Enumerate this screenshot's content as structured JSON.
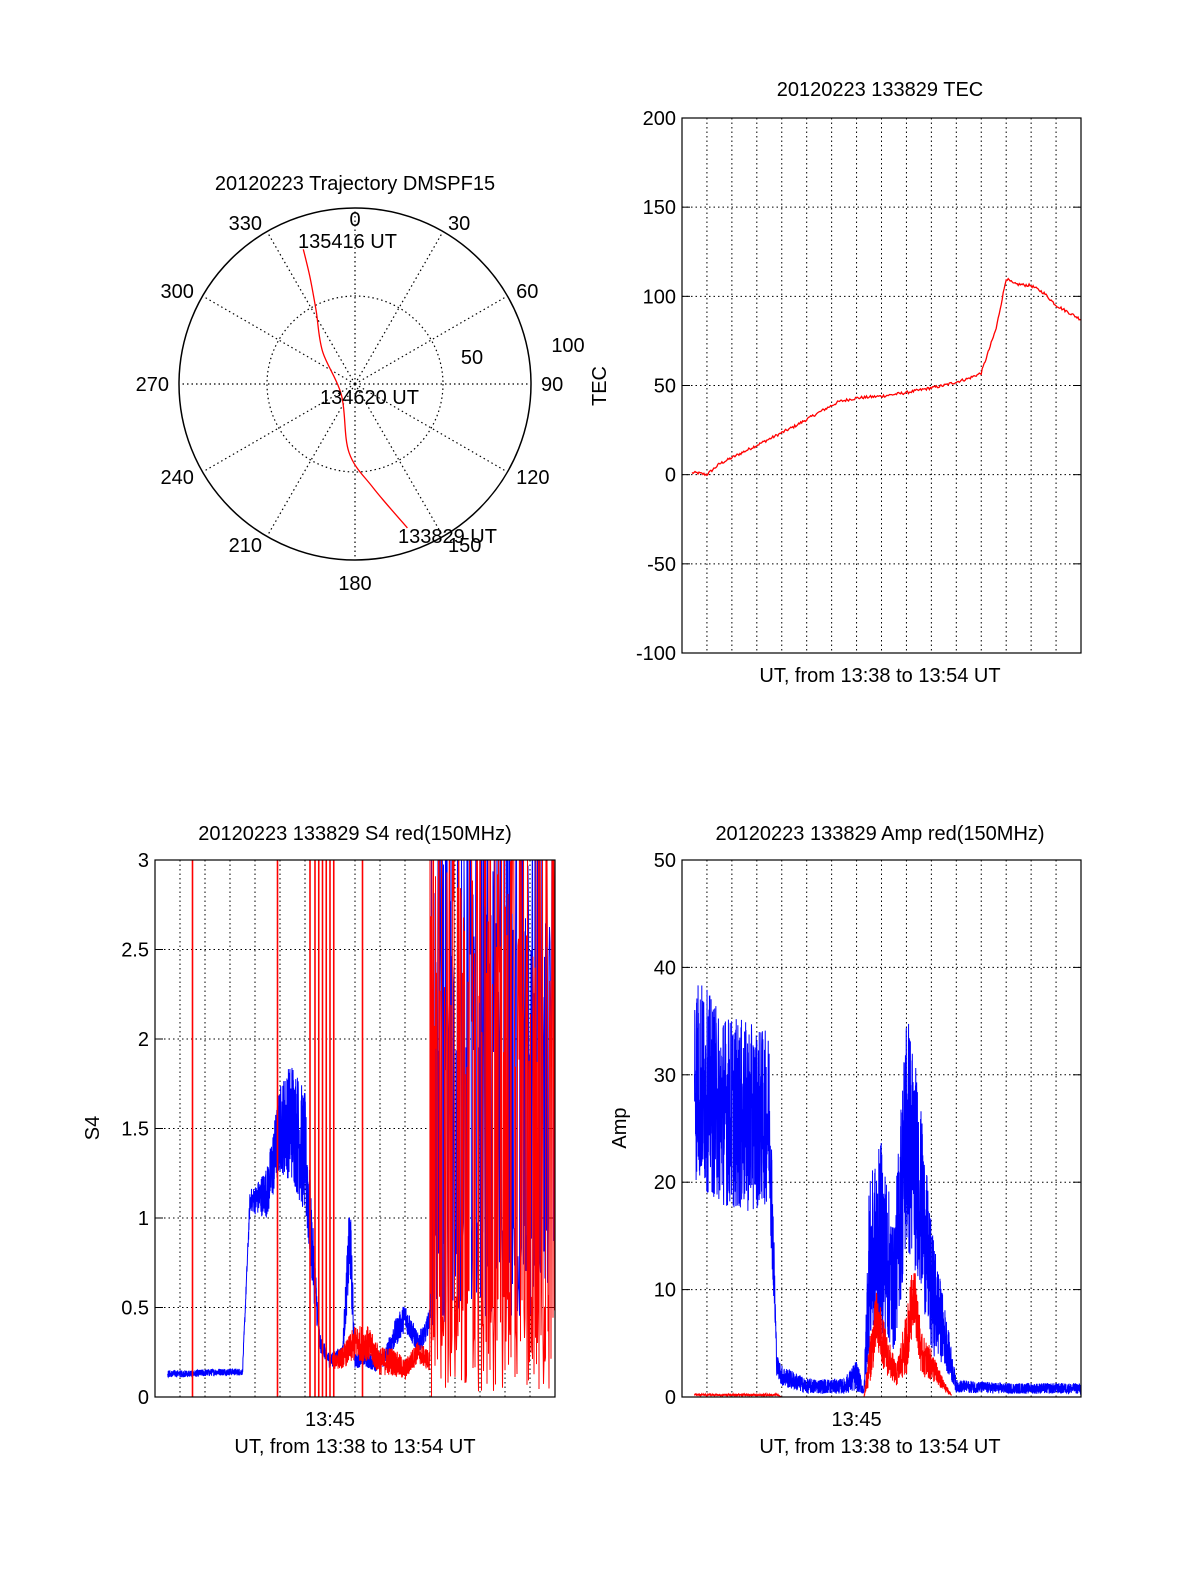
{
  "colors": {
    "red": "#ff0000",
    "blue": "#0000ff",
    "axis": "#000000",
    "grid": "#000000"
  },
  "chart_data": [
    {
      "type": "polar-trajectory",
      "title": "20120223 Trajectory DMSPF15",
      "azimuth_labels": [
        {
          "az": 0,
          "text": "0"
        },
        {
          "az": 30,
          "text": "30"
        },
        {
          "az": 60,
          "text": "60"
        },
        {
          "az": 90,
          "text": "90"
        },
        {
          "az": 120,
          "text": "120"
        },
        {
          "az": 150,
          "text": "150"
        },
        {
          "az": 180,
          "text": "180"
        },
        {
          "az": 210,
          "text": "210"
        },
        {
          "az": 240,
          "text": "240"
        },
        {
          "az": 270,
          "text": "270"
        },
        {
          "az": 300,
          "text": "300"
        },
        {
          "az": 330,
          "text": "330"
        }
      ],
      "radial_rings": [
        50,
        100
      ],
      "radial_labels": [
        "50",
        "100"
      ],
      "radial_max": 100,
      "grid": true,
      "series": {
        "color": "red",
        "points": [
          {
            "az": 339,
            "r": 82
          },
          {
            "az": 337,
            "r": 65
          },
          {
            "az": 332,
            "r": 47
          },
          {
            "az": 315,
            "r": 26
          },
          {
            "az": 230,
            "r": 10
          },
          {
            "az": 185,
            "r": 39
          },
          {
            "az": 170,
            "r": 60
          },
          {
            "az": 160,
            "r": 87
          }
        ]
      },
      "time_labels": [
        "135416 UT",
        "134620 UT",
        "133829 UT"
      ]
    },
    {
      "type": "line",
      "title": "20120223 133829 TEC",
      "xlabel": "UT, from 13:38 to 13:54 UT",
      "ylabel": "TEC",
      "xlim": [
        0,
        16
      ],
      "ylim": [
        -100,
        200
      ],
      "yticks": [
        -100,
        -50,
        0,
        50,
        100,
        150,
        200
      ],
      "grid": true,
      "series": [
        {
          "color": "red",
          "x": [
            0,
            0.6,
            1.0,
            1.5,
            2.5,
            3.5,
            4.5,
            5.5,
            6.3,
            7.0,
            8.0,
            9.0,
            10.5,
            11.5,
            12.0,
            12.6,
            13.0,
            13.3,
            14.0,
            14.5,
            15.0,
            16.0
          ],
          "y": [
            1,
            1,
            0,
            6,
            13,
            20,
            27,
            35,
            41,
            43,
            44,
            46,
            50,
            54,
            57,
            82,
            110,
            107,
            106,
            102,
            95,
            87
          ]
        }
      ]
    },
    {
      "type": "line",
      "title": "20120223 133829 S4 red(150MHz)",
      "xlabel": "UT, from 13:38 to 13:54 UT",
      "ylabel": "S4",
      "xticklabels": [
        {
          "x": 7,
          "text": "13:45"
        }
      ],
      "xlim": [
        0,
        16
      ],
      "ylim": [
        0,
        3
      ],
      "yticks": [
        0,
        0.5,
        1,
        1.5,
        2,
        2.5,
        3
      ],
      "grid": true,
      "series": [
        {
          "name": "",
          "color": "blue",
          "x": [
            0.5,
            1.5,
            2.5,
            3.5,
            3.8,
            4.0,
            4.5,
            5.0,
            5.5,
            6.0,
            6.3,
            6.6,
            7.0,
            7.5,
            7.8,
            8.0,
            8.4,
            8.8,
            9.2,
            9.6,
            10.0,
            10.5,
            10.8,
            11.0
          ],
          "y": [
            0.13,
            0.13,
            0.14,
            0.14,
            1.1,
            1.1,
            1.15,
            1.5,
            1.55,
            1.35,
            0.8,
            0.3,
            0.2,
            0.25,
            0.9,
            0.2,
            0.22,
            0.18,
            0.22,
            0.35,
            0.45,
            0.3,
            0.35,
            0.45
          ],
          "noise": [
            0.02,
            0.02,
            0.02,
            0.02,
            0.06,
            0.08,
            0.15,
            0.25,
            0.35,
            0.35,
            0.2,
            0.05,
            0.04,
            0.04,
            0.25,
            0.04,
            0.05,
            0.04,
            0.05,
            0.08,
            0.08,
            0.06,
            0.06,
            0.06
          ],
          "burst_x": [
            11.0,
            16.0
          ],
          "burst_y": [
            0.4,
            3.0
          ]
        },
        {
          "name": "",
          "color": "red",
          "spikes": [
            1.5,
            4.9,
            6.2,
            6.4,
            6.55,
            6.7,
            6.85,
            7.0,
            7.15,
            8.3
          ],
          "x": [
            7.1,
            7.5,
            8.0,
            8.5,
            9.0,
            9.5,
            10.0,
            10.5,
            11.0
          ],
          "y": [
            0.2,
            0.22,
            0.3,
            0.3,
            0.2,
            0.2,
            0.15,
            0.25,
            0.2
          ],
          "noise": [
            0.05,
            0.06,
            0.1,
            0.1,
            0.08,
            0.08,
            0.06,
            0.06,
            0.06
          ],
          "burst_x": [
            11.0,
            16.0
          ],
          "burst_y": [
            0.0,
            3.0
          ]
        }
      ]
    },
    {
      "type": "line",
      "title": "20120223 133829 Amp red(150MHz)",
      "xlabel": "UT, from 13:38 to 13:54 UT",
      "ylabel": "Amp",
      "xticklabels": [
        {
          "x": 7,
          "text": "13:45"
        }
      ],
      "xlim": [
        0,
        16
      ],
      "ylim": [
        0,
        50
      ],
      "yticks": [
        0,
        10,
        20,
        30,
        40,
        50
      ],
      "grid": true,
      "series": [
        {
          "name": "",
          "color": "blue",
          "x": [
            0.5,
            1.5,
            2.5,
            3.5,
            3.8,
            4.0,
            5.0,
            6.5,
            7.0,
            7.3,
            7.5,
            8.0,
            8.5,
            9.0,
            9.5,
            10.0,
            10.5,
            11.0,
            13.0,
            16.0
          ],
          "y": [
            30,
            27,
            26,
            26,
            3,
            2,
            1,
            1,
            2,
            0.5,
            12,
            15,
            10,
            25,
            20,
            10,
            6,
            1,
            0.8,
            0.8
          ],
          "noise": [
            10,
            9,
            9,
            8,
            1,
            1,
            0.7,
            0.7,
            1.5,
            0.3,
            8,
            9,
            6,
            12,
            9,
            6,
            3,
            0.6,
            0.5,
            0.5
          ]
        },
        {
          "name": "",
          "color": "red",
          "x": [
            0.5,
            3.8,
            4.0,
            7.3,
            7.5,
            7.8,
            8.2,
            8.6,
            9.0,
            9.3,
            9.6,
            10.0,
            10.5,
            10.8
          ],
          "y": [
            0.2,
            0.2,
            0,
            0,
            3,
            7,
            4,
            2,
            5,
            10,
            4,
            3,
            1,
            0.2
          ],
          "noise": [
            0.1,
            0.1,
            0,
            0,
            2,
            3,
            2,
            1,
            3,
            3,
            2,
            1.5,
            0.5,
            0.1
          ]
        }
      ]
    }
  ]
}
